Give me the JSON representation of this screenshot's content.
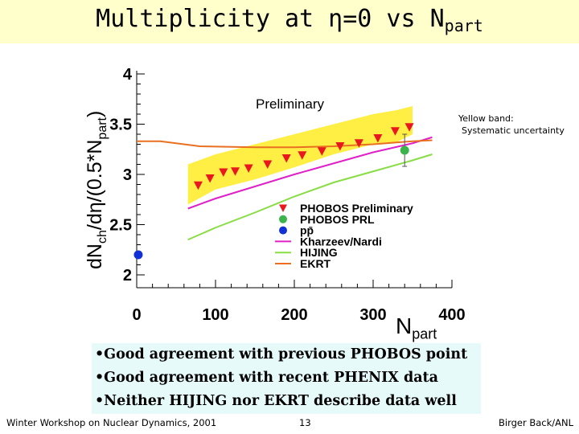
{
  "slide": {
    "title_prefix": "Multiplicity at ",
    "title_symbol": "η",
    "title_suffix": "=0 vs N",
    "title_sub": "part",
    "bullets": [
      "•Good agreement with previous PHOBOS point",
      "•Good agreement with recent PHENIX data",
      "•Neither HIJING nor EKRT describe data well"
    ],
    "footer_left": "Winter Workshop on Nuclear Dynamics, 2001",
    "footer_center": "13",
    "footer_right": "Birger Back/ANL"
  },
  "chart_data": {
    "type": "scatter",
    "title": "Multiplicity at η=0 vs Npart",
    "xlabel_main": "N",
    "xlabel_sub": "part",
    "ylabel_main": "dN",
    "ylabel_sub1": "ch",
    "ylabel_mid": "/dη/(0.5*N",
    "ylabel_sub2": "part",
    "ylabel_end": ")",
    "xlim": [
      0,
      400
    ],
    "ylim": [
      2,
      4
    ],
    "x_ticks": [
      0,
      100,
      200,
      300,
      400
    ],
    "x_tick_labels": [
      "0",
      "100",
      "200",
      "300",
      "400"
    ],
    "y_ticks": [
      2,
      2.5,
      3,
      3.5,
      4
    ],
    "y_tick_labels": [
      "2",
      "2.5",
      "3",
      "3.5",
      "4"
    ],
    "annotations": {
      "preliminary": "Preliminary",
      "yellow_band_line1": "Yellow band:",
      "yellow_band_line2": "Systematic uncertainty"
    },
    "legend": [
      {
        "name": "PHOBOS Preliminary",
        "marker": "triangle-down",
        "color": "#e8181e"
      },
      {
        "name": "PHOBOS PRL",
        "marker": "circle",
        "color": "#3cb44b"
      },
      {
        "name": "pp̄",
        "marker": "circle",
        "color": "#1030d8"
      },
      {
        "name": "Kharzeev/Nardi",
        "marker": "line",
        "color": "#e020c8"
      },
      {
        "name": "HIJING",
        "marker": "line",
        "color": "#88dd44"
      },
      {
        "name": "EKRT",
        "marker": "line",
        "color": "#e87020"
      }
    ],
    "band": {
      "name": "Systematic uncertainty",
      "color": "#ffee44",
      "x": [
        65,
        100,
        150,
        200,
        250,
        300,
        330,
        350
      ],
      "low": [
        2.7,
        2.85,
        2.95,
        3.07,
        3.2,
        3.3,
        3.32,
        3.4
      ],
      "high": [
        3.1,
        3.2,
        3.3,
        3.4,
        3.5,
        3.6,
        3.64,
        3.68
      ]
    },
    "series": [
      {
        "name": "PHOBOS Preliminary",
        "type": "scatter",
        "color": "#e8181e",
        "x": [
          78,
          93,
          110,
          125,
          142,
          166,
          190,
          210,
          235,
          258,
          282,
          306,
          328,
          346
        ],
        "y": [
          2.89,
          2.96,
          3.02,
          3.03,
          3.06,
          3.1,
          3.16,
          3.19,
          3.23,
          3.28,
          3.31,
          3.36,
          3.43,
          3.47
        ]
      },
      {
        "name": "PHOBOS PRL",
        "type": "scatter",
        "color": "#3cb44b",
        "x": [
          340
        ],
        "y": [
          3.24
        ],
        "yerr": [
          0.16
        ]
      },
      {
        "name": "pp̄",
        "type": "scatter",
        "color": "#1030d8",
        "x": [
          2
        ],
        "y": [
          2.2
        ]
      },
      {
        "name": "Kharzeev/Nardi",
        "type": "line",
        "color": "#e020c8",
        "x": [
          65,
          100,
          150,
          200,
          250,
          300,
          350,
          375
        ],
        "y": [
          2.66,
          2.76,
          2.88,
          3.0,
          3.11,
          3.22,
          3.31,
          3.37
        ]
      },
      {
        "name": "HIJING",
        "type": "line",
        "color": "#88dd44",
        "x": [
          65,
          100,
          150,
          200,
          250,
          300,
          350,
          375
        ],
        "y": [
          2.35,
          2.47,
          2.62,
          2.78,
          2.92,
          3.03,
          3.14,
          3.2
        ]
      },
      {
        "name": "EKRT",
        "type": "line",
        "color": "#e87020",
        "x": [
          0,
          30,
          80,
          150,
          200,
          250,
          300,
          350,
          375
        ],
        "y": [
          3.33,
          3.33,
          3.28,
          3.27,
          3.27,
          3.28,
          3.3,
          3.33,
          3.34
        ]
      }
    ]
  }
}
